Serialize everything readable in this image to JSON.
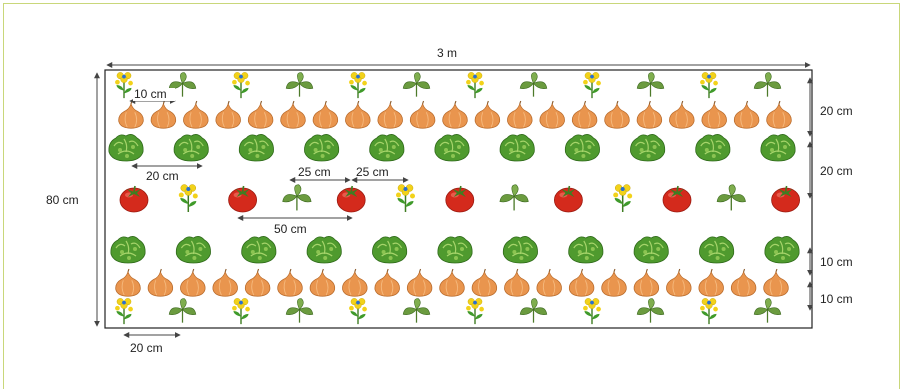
{
  "dimensions": {
    "width_label": "3 m",
    "height_label": "80 cm",
    "flower_spacing_label": "10 cm",
    "lettuce_spacing_label": "20 cm",
    "tomato_gap_label": "50 cm",
    "half_gap_left_label": "25 cm",
    "half_gap_right_label": "25 cm",
    "bottom_spacing_label": "20 cm",
    "right_row1_label": "20 cm",
    "right_row2_label": "20 cm",
    "right_row3_label": "10 cm",
    "right_row4_label": "10 cm"
  },
  "rows": [
    {
      "name": "flowers-and-beans-top",
      "pattern": [
        "flower",
        "bean"
      ]
    },
    {
      "name": "onions-top",
      "pattern": [
        "onion"
      ]
    },
    {
      "name": "lettuce-top",
      "pattern": [
        "lettuce"
      ]
    },
    {
      "name": "tomatoes-middle",
      "pattern": [
        "tomato",
        "flower",
        "tomato",
        "bean",
        "tomato",
        "flower",
        "tomato",
        "bean",
        "tomato",
        "flower",
        "tomato",
        "bean",
        "tomato"
      ]
    },
    {
      "name": "lettuce-bottom",
      "pattern": [
        "lettuce"
      ]
    },
    {
      "name": "onions-bottom",
      "pattern": [
        "onion"
      ]
    },
    {
      "name": "flowers-and-beans-bottom",
      "pattern": [
        "flower",
        "bean"
      ]
    }
  ],
  "icons": {
    "flower": "flower-icon",
    "bean": "bean-plant-icon",
    "onion": "onion-icon",
    "lettuce": "lettuce-icon",
    "tomato": "tomato-icon"
  },
  "colors": {
    "frame": "#c9d77a",
    "onion": "#e9954e",
    "tomato": "#d42a1c",
    "lettuce": "#4f9a2e",
    "leaf": "#6b9b3f",
    "flower": "#f2d21a"
  }
}
